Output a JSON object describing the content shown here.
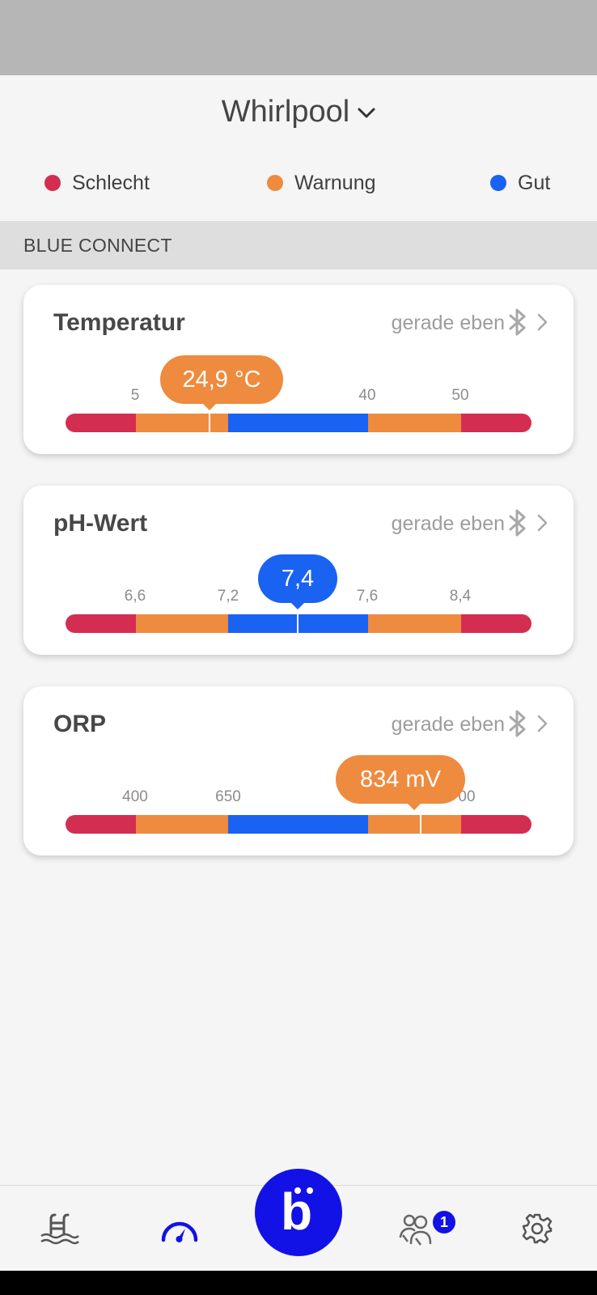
{
  "app": {
    "pool_name": "Whirlpool",
    "section_title": "BLUE CONNECT"
  },
  "legend": [
    {
      "label": "Schlecht",
      "color": "#d42d52"
    },
    {
      "label": "Warnung",
      "color": "#ee8b3f"
    },
    {
      "label": "Gut",
      "color": "#1a62f2"
    }
  ],
  "colors": {
    "bad": "#d42d52",
    "warn": "#ee8b3f",
    "good": "#1a62f2",
    "nav_active": "#1212e6"
  },
  "cards": [
    {
      "title": "Temperatur",
      "time": "gerade eben",
      "value_label": "24,9 °C",
      "value_status": "warn",
      "ticks": [
        "5",
        "",
        "40",
        "50"
      ],
      "segments": [
        "bad",
        "warn",
        "good",
        "warn",
        "bad"
      ]
    },
    {
      "title": "pH-Wert",
      "time": "gerade eben",
      "value_label": "7,4",
      "value_status": "good",
      "ticks": [
        "6,6",
        "7,2",
        "7,6",
        "8,4"
      ],
      "segments": [
        "bad",
        "warn",
        "good",
        "warn",
        "bad"
      ]
    },
    {
      "title": "ORP",
      "time": "gerade eben",
      "value_label": "834 mV",
      "value_status": "warn",
      "ticks": [
        "400",
        "650",
        "",
        "00"
      ],
      "segments": [
        "bad",
        "warn",
        "good",
        "warn",
        "bad"
      ]
    }
  ],
  "nav": {
    "items": [
      {
        "icon": "pool-ladder-icon",
        "active": false
      },
      {
        "icon": "gauge-icon",
        "active": true
      },
      {
        "icon": "blue-logo-icon",
        "active": false
      },
      {
        "icon": "community-icon",
        "active": false
      },
      {
        "icon": "gear-icon",
        "active": false
      }
    ],
    "badge_count": "1",
    "logo_letter": "b"
  }
}
